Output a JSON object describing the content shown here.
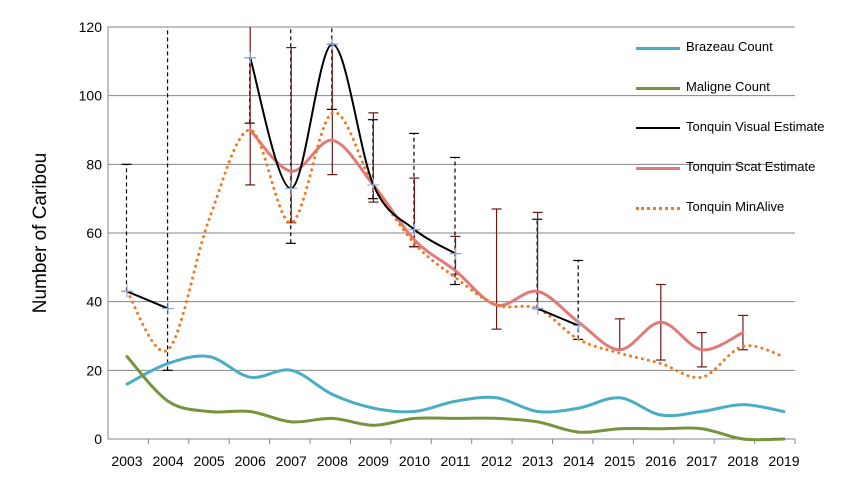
{
  "chart_data": {
    "type": "line",
    "xlabel": "",
    "ylabel": "Number of Caribou",
    "ylim": [
      0,
      120
    ],
    "yticks": [
      0,
      20,
      40,
      60,
      80,
      100,
      120
    ],
    "x": [
      2003,
      2004,
      2005,
      2006,
      2007,
      2008,
      2009,
      2010,
      2011,
      2012,
      2013,
      2014,
      2015,
      2016,
      2017,
      2018,
      2019
    ],
    "grid": "horizontal",
    "legend": "right",
    "series": [
      {
        "name": "Brazeau Count",
        "color": "#4BACC6",
        "style": "solid",
        "values": [
          16,
          22,
          24,
          18,
          20,
          13,
          9,
          8,
          11,
          12,
          8,
          9,
          12,
          7,
          8,
          10,
          8
        ]
      },
      {
        "name": "Maligne Count",
        "color": "#77933C",
        "style": "solid",
        "values": [
          24,
          11,
          8,
          8,
          5,
          6,
          4,
          6,
          6,
          6,
          5,
          2,
          3,
          3,
          3,
          0,
          0
        ]
      },
      {
        "name": "Tonquin Visual Estimate",
        "color": "#000000",
        "style": "solid",
        "marker": "plus",
        "values": [
          43,
          38,
          null,
          111,
          73,
          115,
          74,
          61,
          54,
          null,
          38,
          33,
          null,
          null,
          null,
          null,
          null
        ],
        "error_style": "dashed",
        "errors": [
          [
            43,
            80
          ],
          [
            20,
            120
          ],
          null,
          [
            92,
            111
          ],
          [
            57,
            120
          ],
          [
            96,
            120
          ],
          [
            70,
            93
          ],
          [
            56,
            89
          ],
          [
            45,
            82
          ],
          null,
          [
            38,
            64
          ],
          [
            29,
            52
          ],
          null,
          null,
          null,
          null,
          null
        ]
      },
      {
        "name": "Tonquin Scat Estimate",
        "color": "#E07B7B",
        "style": "solid",
        "values": [
          null,
          null,
          null,
          90,
          78,
          87,
          74,
          58,
          49,
          39,
          43,
          34,
          26,
          34,
          26,
          31,
          null
        ],
        "error_style": "solid",
        "error_color": "#6B1A1A",
        "errors": [
          null,
          null,
          null,
          [
            74,
            120
          ],
          [
            63,
            114
          ],
          [
            77,
            115
          ],
          [
            69,
            95
          ],
          [
            56,
            76
          ],
          [
            48,
            59
          ],
          [
            32,
            67
          ],
          [
            38,
            66
          ],
          null,
          [
            26,
            35
          ],
          [
            23,
            45
          ],
          [
            21,
            31
          ],
          [
            26,
            36
          ],
          null
        ]
      },
      {
        "name": "Tonquin MinAlive",
        "color": "#F07820",
        "style": "dotted",
        "values": [
          43,
          26,
          64,
          90,
          63,
          95,
          74,
          57,
          47,
          39,
          38,
          29,
          25,
          22,
          18,
          27,
          24
        ]
      }
    ]
  }
}
